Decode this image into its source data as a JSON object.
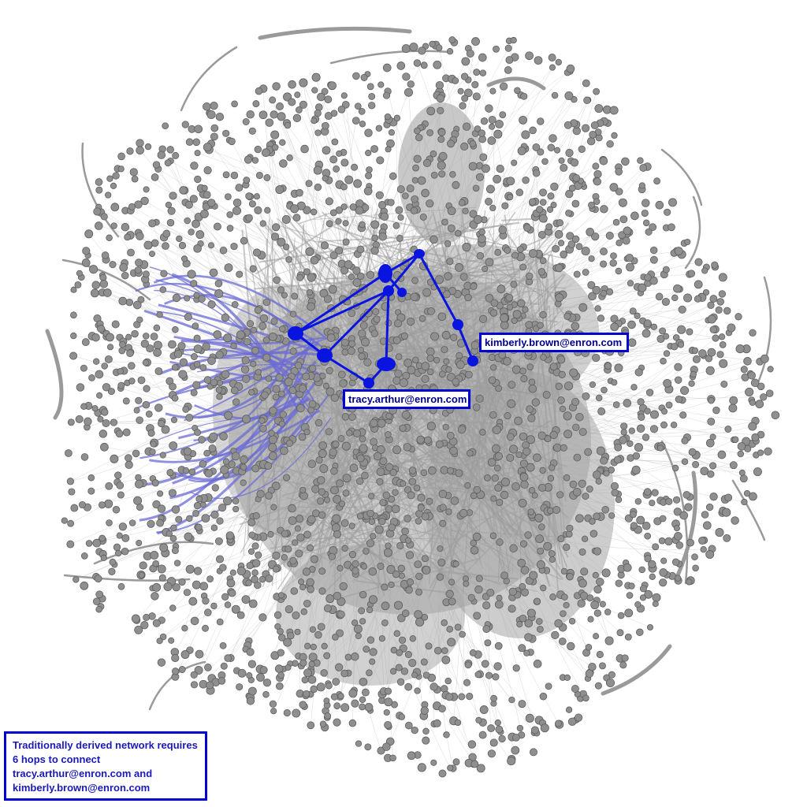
{
  "labels": {
    "target_node": "kimberly.brown@enron.com",
    "source_node": "tracy.arthur@enron.com"
  },
  "caption": {
    "lines": [
      "Traditionally derived network requires",
      "6 hops to connect",
      "tracy.arthur@enron.com and",
      "kimberly.brown@enron.com"
    ]
  },
  "colors": {
    "node_fill": "#8f8f8f",
    "node_stroke": "#5e5e5e",
    "edge_gray": "#9a9a9a",
    "edge_light": "#c8c8c8",
    "path_blue": "#0a14e0",
    "path_light_blue": "#6b6bd6",
    "box_border": "#0000d0"
  },
  "path": {
    "hops": 6
  }
}
